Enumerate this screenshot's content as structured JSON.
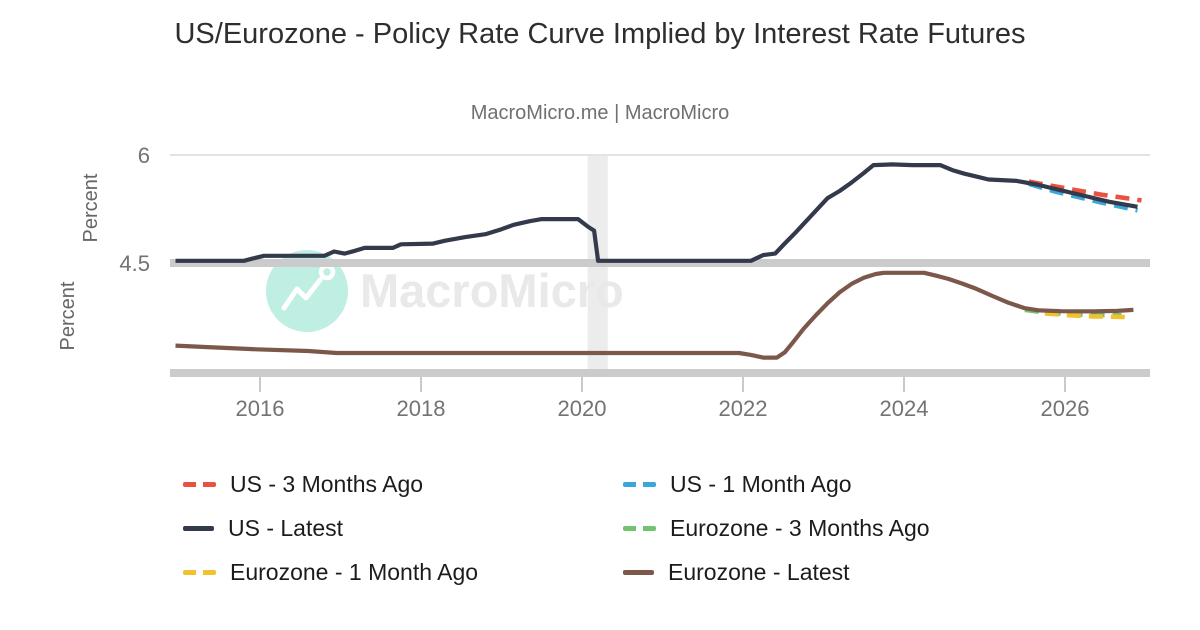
{
  "page": {
    "title": "US/Eurozone - Policy Rate Curve Implied by Interest Rate Futures",
    "subtitle": "MacroMicro.me | MacroMicro"
  },
  "watermark": {
    "text": "MacroMicro",
    "logo": "macromicro-mountain-chart-logo",
    "circle_color": "#bfeee2",
    "logo_stroke_color": "#ffffff",
    "text_color": "#e9e9e9"
  },
  "axes": {
    "x": {
      "tick_labels": [
        "2016",
        "2018",
        "2020",
        "2022",
        "2024",
        "2026"
      ],
      "tick_years": [
        2016,
        2018,
        2020,
        2022,
        2024,
        2026
      ],
      "range_years": [
        2014.9,
        2027.05
      ]
    },
    "y_upper": {
      "label": "Percent",
      "tick_labels": [
        "6",
        "4.5"
      ],
      "tick_values": [
        6,
        4.5
      ]
    },
    "y_lower": {
      "label": "Percent",
      "tick_labels": [],
      "tick_values": []
    }
  },
  "legend": {
    "items": [
      {
        "label": "US - 3 Months Ago",
        "color": "#e8523e",
        "style": "dashed"
      },
      {
        "label": "US - 1 Month Ago",
        "color": "#3aa7d9",
        "style": "dashed"
      },
      {
        "label": "US - Latest",
        "color": "#333a4c",
        "style": "solid"
      },
      {
        "label": "Eurozone - 3 Months Ago",
        "color": "#70c36f",
        "style": "dashed"
      },
      {
        "label": "Eurozone - 1 Month Ago",
        "color": "#f2c12e",
        "style": "dashed"
      },
      {
        "label": "Eurozone - Latest",
        "color": "#7c584a",
        "style": "solid"
      }
    ]
  },
  "colors": {
    "grid_thin": "#e3e3e3",
    "grid_band": "#cbcbcb",
    "recession_band": "#ececec",
    "tick_text": "#737373",
    "axis_label_text": "#666666"
  },
  "chart_data": {
    "type": "line",
    "title": "US/Eurozone - Policy Rate Curve Implied by Interest Rate Futures",
    "subtitle": "MacroMicro.me | MacroMicro",
    "layout": "two stacked panels sharing one x-axis, legend below, horizontal gridlines only",
    "x_range": [
      2014.9,
      2027.05
    ],
    "recession_band_x": [
      2020.07,
      2020.32
    ],
    "panels": [
      {
        "id": "us",
        "ylabel": "Percent",
        "yticks": [
          4.5,
          6
        ],
        "displayed_range": [
          4.45,
          6.05
        ]
      },
      {
        "id": "ez",
        "ylabel": "Percent",
        "yticks": [],
        "assumed_range": [
          0,
          4.5
        ]
      }
    ],
    "series": [
      {
        "name": "US - 3 Months Ago",
        "panel": "us",
        "color": "#e8523e",
        "dash": true,
        "points": [
          [
            2025.55,
            5.63
          ],
          [
            2025.85,
            5.57
          ],
          [
            2026.15,
            5.51
          ],
          [
            2026.45,
            5.45
          ],
          [
            2026.95,
            5.37
          ]
        ]
      },
      {
        "name": "US - 1 Month Ago",
        "panel": "us",
        "color": "#3aa7d9",
        "dash": true,
        "points": [
          [
            2025.55,
            5.6
          ],
          [
            2025.85,
            5.5
          ],
          [
            2026.15,
            5.42
          ],
          [
            2026.45,
            5.34
          ],
          [
            2026.9,
            5.23
          ]
        ]
      },
      {
        "name": "US - Latest",
        "panel": "us",
        "color": "#333a4c",
        "dash": false,
        "points": [
          [
            2014.95,
            4.53
          ],
          [
            2015.8,
            4.53
          ],
          [
            2015.9,
            4.56
          ],
          [
            2016.05,
            4.6
          ],
          [
            2016.8,
            4.6
          ],
          [
            2016.92,
            4.66
          ],
          [
            2017.05,
            4.63
          ],
          [
            2017.18,
            4.67
          ],
          [
            2017.3,
            4.71
          ],
          [
            2017.65,
            4.71
          ],
          [
            2017.75,
            4.76
          ],
          [
            2018.15,
            4.77
          ],
          [
            2018.3,
            4.81
          ],
          [
            2018.55,
            4.86
          ],
          [
            2018.8,
            4.9
          ],
          [
            2019.0,
            4.97
          ],
          [
            2019.15,
            5.03
          ],
          [
            2019.35,
            5.08
          ],
          [
            2019.5,
            5.11
          ],
          [
            2019.95,
            5.11
          ],
          [
            2020.08,
            5.0
          ],
          [
            2020.15,
            4.95
          ],
          [
            2020.2,
            4.53
          ],
          [
            2022.1,
            4.53
          ],
          [
            2022.25,
            4.61
          ],
          [
            2022.4,
            4.63
          ],
          [
            2022.5,
            4.75
          ],
          [
            2022.65,
            4.92
          ],
          [
            2022.8,
            5.1
          ],
          [
            2022.95,
            5.28
          ],
          [
            2023.05,
            5.4
          ],
          [
            2023.2,
            5.5
          ],
          [
            2023.35,
            5.62
          ],
          [
            2023.5,
            5.75
          ],
          [
            2023.62,
            5.86
          ],
          [
            2023.85,
            5.87
          ],
          [
            2024.1,
            5.86
          ],
          [
            2024.45,
            5.86
          ],
          [
            2024.6,
            5.79
          ],
          [
            2024.75,
            5.74
          ],
          [
            2024.9,
            5.7
          ],
          [
            2025.05,
            5.66
          ],
          [
            2025.4,
            5.64
          ],
          [
            2025.65,
            5.59
          ],
          [
            2025.95,
            5.51
          ],
          [
            2026.25,
            5.43
          ],
          [
            2026.55,
            5.35
          ],
          [
            2026.9,
            5.28
          ]
        ]
      },
      {
        "name": "Eurozone - 3 Months Ago",
        "panel": "ez",
        "color": "#70c36f",
        "dash": true,
        "points": [
          [
            2025.5,
            2.58
          ],
          [
            2025.8,
            2.46
          ],
          [
            2026.1,
            2.4
          ],
          [
            2026.45,
            2.37
          ],
          [
            2026.7,
            2.36
          ]
        ]
      },
      {
        "name": "Eurozone - 1 Month Ago",
        "panel": "ez",
        "color": "#f2c12e",
        "dash": true,
        "points": [
          [
            2025.75,
            2.44
          ],
          [
            2026.05,
            2.36
          ],
          [
            2026.35,
            2.31
          ],
          [
            2026.75,
            2.29
          ]
        ]
      },
      {
        "name": "Eurozone - Latest",
        "panel": "ez",
        "color": "#7c584a",
        "dash": false,
        "points": [
          [
            2014.95,
            1.12
          ],
          [
            2015.35,
            1.06
          ],
          [
            2015.95,
            0.97
          ],
          [
            2016.6,
            0.9
          ],
          [
            2016.95,
            0.82
          ],
          [
            2021.95,
            0.82
          ],
          [
            2022.1,
            0.74
          ],
          [
            2022.25,
            0.63
          ],
          [
            2022.42,
            0.63
          ],
          [
            2022.52,
            0.85
          ],
          [
            2022.62,
            1.25
          ],
          [
            2022.75,
            1.8
          ],
          [
            2022.9,
            2.35
          ],
          [
            2023.05,
            2.85
          ],
          [
            2023.2,
            3.3
          ],
          [
            2023.35,
            3.65
          ],
          [
            2023.5,
            3.9
          ],
          [
            2023.65,
            4.05
          ],
          [
            2023.75,
            4.1
          ],
          [
            2024.25,
            4.1
          ],
          [
            2024.4,
            3.98
          ],
          [
            2024.55,
            3.85
          ],
          [
            2024.72,
            3.66
          ],
          [
            2024.9,
            3.44
          ],
          [
            2025.1,
            3.15
          ],
          [
            2025.3,
            2.87
          ],
          [
            2025.5,
            2.65
          ],
          [
            2025.68,
            2.56
          ],
          [
            2025.95,
            2.53
          ],
          [
            2026.35,
            2.52
          ],
          [
            2026.65,
            2.54
          ],
          [
            2026.85,
            2.58
          ]
        ]
      }
    ]
  }
}
